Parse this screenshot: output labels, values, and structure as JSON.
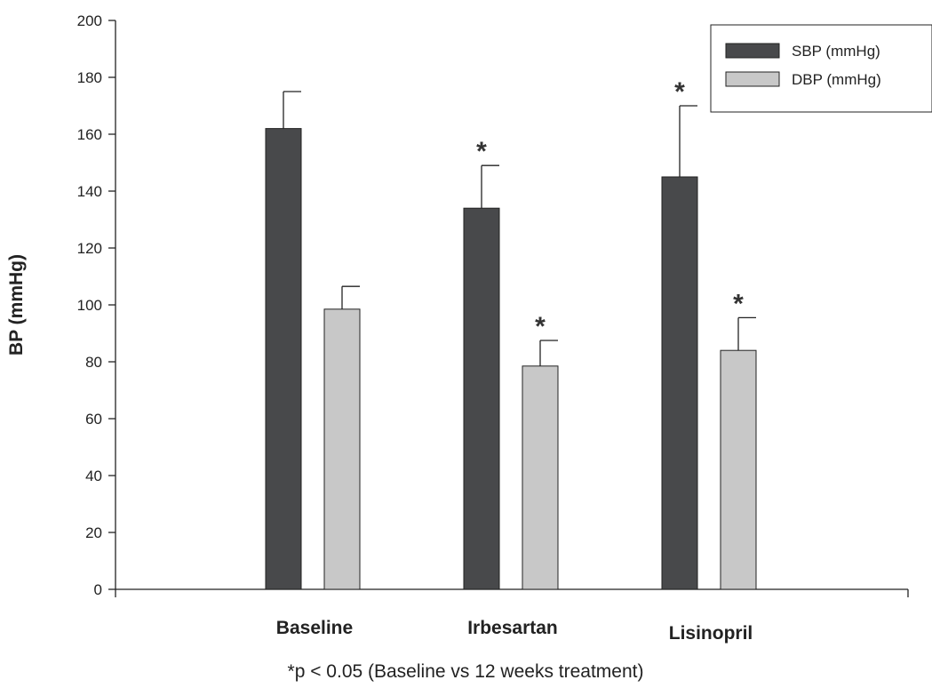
{
  "chart_data": {
    "type": "bar",
    "categories": [
      "Baseline",
      "Irbesartan",
      "Lisinopril"
    ],
    "series": [
      {
        "name": "SBP (mmHg)",
        "color": "#48494b",
        "values": [
          162,
          134,
          145
        ],
        "errors": [
          13,
          15,
          25
        ],
        "significant": [
          false,
          true,
          true
        ]
      },
      {
        "name": "DBP (mmHg)",
        "color": "#c8c8c8",
        "values": [
          98.5,
          78.5,
          84
        ],
        "errors": [
          8,
          9,
          11.5
        ],
        "significant": [
          false,
          true,
          true
        ]
      }
    ],
    "ylabel": "BP (mmHg)",
    "xlabel": "",
    "ylim": [
      0,
      200
    ],
    "yticks": [
      0,
      20,
      40,
      60,
      80,
      100,
      120,
      140,
      160,
      180,
      200
    ],
    "significance_marker": "*",
    "footnote": "*p < 0.05 (Baseline vs 12 weeks treatment)",
    "legend_position": "top-right",
    "grid": false
  }
}
